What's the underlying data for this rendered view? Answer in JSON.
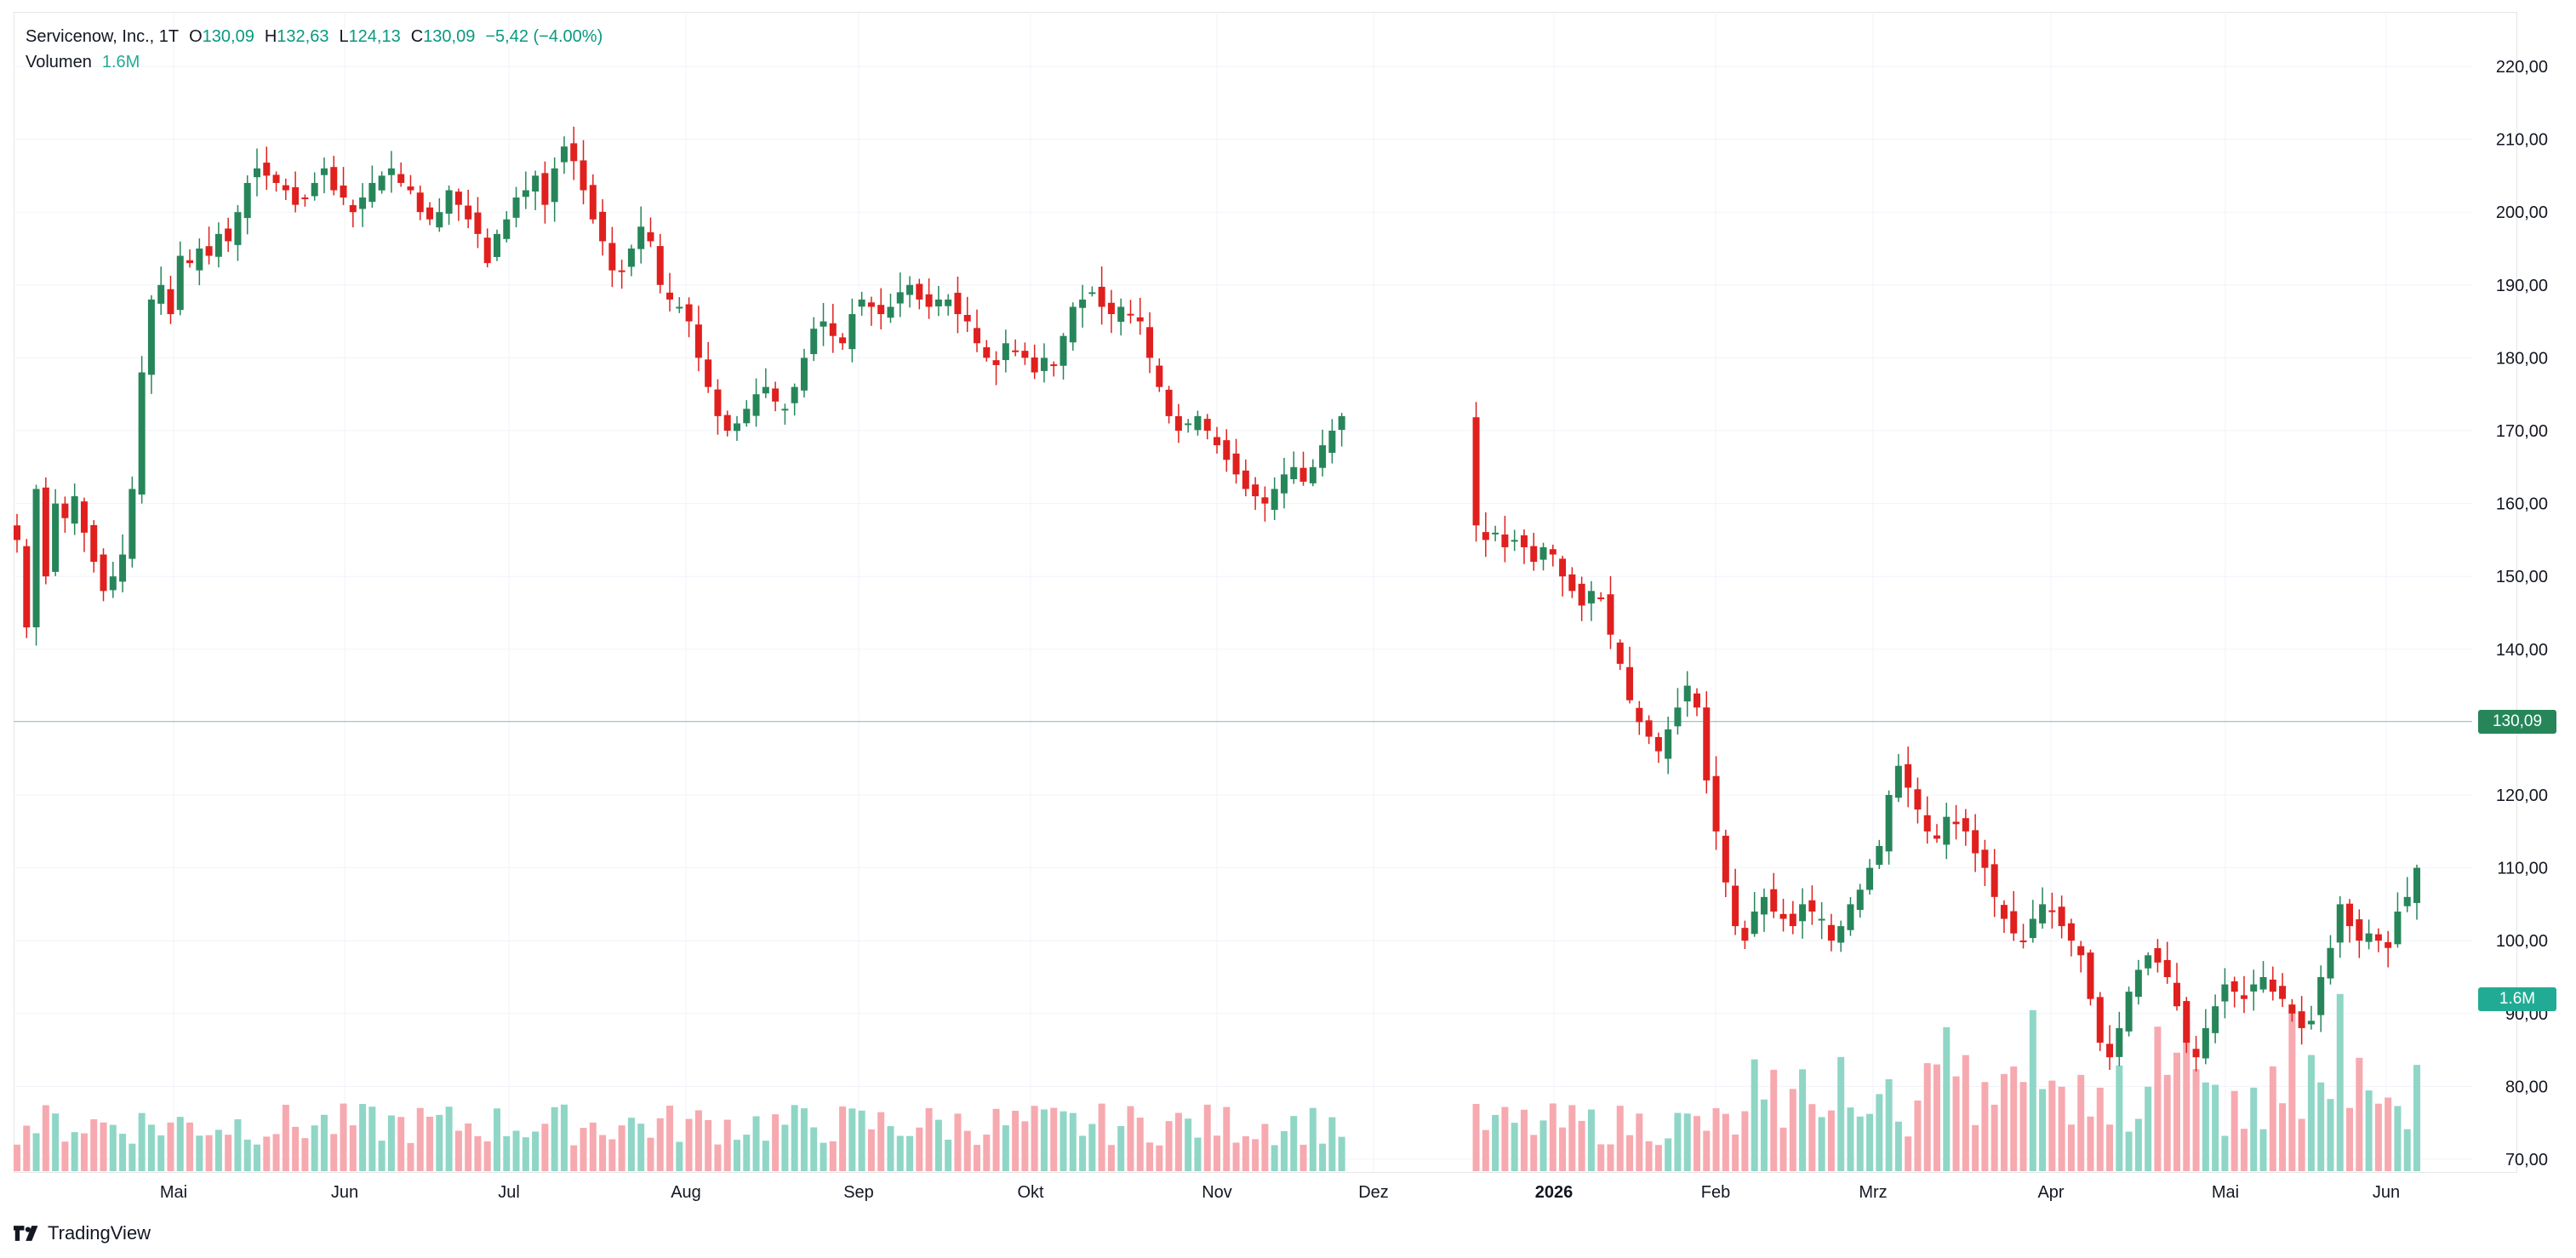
{
  "legend": {
    "symbol": "Servicenow, Inc., 1T",
    "open_key": "O",
    "open": "130,09",
    "high_key": "H",
    "high": "132,63",
    "low_key": "L",
    "low": "124,13",
    "close_key": "C",
    "close": "130,09",
    "change": "−5,42 (−4.00%)",
    "volume_label": "Volumen",
    "volume_value": "1.6M"
  },
  "badges": {
    "price": "130,09",
    "volume": "1.6M"
  },
  "logo": {
    "text": "TradingView"
  },
  "colors": {
    "up": "#26865a",
    "down": "#e0201e",
    "up_vol": "#8fd6c6",
    "down_vol": "#f7a9b0",
    "price_line": "#2b8a6b",
    "grid": "#f0f3fa"
  },
  "chart_data": {
    "type": "candlestick",
    "title": "Servicenow, Inc., 1T",
    "xlabel": "",
    "ylabel": "",
    "ylim": [
      68,
      224
    ],
    "y_ticks": [
      "70,00",
      "80,00",
      "90,00",
      "100,00",
      "110,00",
      "120,00",
      "130,00",
      "140,00",
      "150,00",
      "160,00",
      "170,00",
      "180,00",
      "190,00",
      "200,00",
      "210,00",
      "220,00"
    ],
    "x_ticks": [
      "Mai",
      "Jun",
      "Jul",
      "Aug",
      "Sep",
      "Okt",
      "Nov",
      "Dez",
      "2026",
      "Feb",
      "Mrz",
      "Apr",
      "Mai",
      "Jun"
    ],
    "last_price": 130.09,
    "grid": true,
    "segments": [
      {
        "from": 0,
        "to": 11,
        "values": [
          155,
          143,
          162,
          150,
          160,
          158,
          161,
          156,
          152,
          148,
          150,
          153
        ]
      },
      {
        "from": 12,
        "to": 38,
        "values": [
          162,
          178,
          188,
          190,
          186,
          194,
          193,
          195,
          194,
          197,
          196,
          200,
          204,
          206,
          205,
          204,
          203,
          201,
          202,
          204,
          206,
          203,
          202,
          200,
          202,
          204,
          205
        ]
      },
      {
        "from": 39,
        "to": 62,
        "values": [
          206,
          204,
          203,
          200,
          199,
          200,
          203,
          201,
          199,
          197,
          193,
          197,
          199,
          202,
          203,
          205,
          201,
          206,
          209,
          207,
          203,
          199,
          196,
          192
        ]
      },
      {
        "from": 63,
        "to": 96,
        "values": [
          192,
          195,
          198,
          196,
          190,
          188,
          187,
          185,
          180,
          176,
          172,
          170,
          171,
          173,
          175,
          176,
          174,
          173,
          176,
          180,
          184,
          185,
          183,
          182,
          186,
          188,
          187,
          186,
          187,
          189,
          190,
          188,
          187,
          188
        ]
      },
      {
        "from": 97,
        "to": 138,
        "values": [
          188,
          186,
          185,
          182,
          180,
          179,
          182,
          181,
          180,
          178,
          180,
          179,
          183,
          187,
          188,
          189,
          187,
          186,
          187,
          186,
          185,
          180,
          176,
          172,
          170,
          171,
          172,
          170,
          168,
          166,
          164,
          162,
          161,
          160,
          162,
          164,
          165,
          163,
          165,
          168,
          170,
          172
        ]
      },
      {
        "from": 152,
        "to": 194,
        "values": [
          157,
          155,
          156,
          154,
          155,
          154,
          152,
          154,
          153,
          150,
          148,
          146,
          148,
          147,
          142,
          138,
          133,
          130,
          128,
          126,
          129,
          132,
          135,
          132,
          122,
          115,
          108,
          102,
          100,
          104,
          106,
          104,
          103,
          102,
          105,
          104,
          103,
          100,
          102,
          105,
          107,
          110,
          113
        ]
      },
      {
        "from": 195,
        "to": 244,
        "values": [
          120,
          124,
          121,
          118,
          115,
          114,
          117,
          116,
          115,
          112,
          110,
          106,
          103,
          101,
          100,
          103,
          105,
          104,
          102,
          100,
          98,
          92,
          86,
          84,
          88,
          93,
          96,
          98,
          97,
          95,
          91,
          86,
          84,
          88,
          91,
          94,
          93,
          92,
          94,
          95,
          93,
          92,
          90,
          88,
          89,
          95,
          99,
          105,
          102,
          100
        ]
      },
      {
        "from": 245,
        "to": 250,
        "values": [
          101,
          100,
          99,
          104,
          106,
          110
        ]
      }
    ],
    "final_candles": [
      {
        "o": 117,
        "h": 126,
        "l": 116,
        "c": 125
      },
      {
        "o": 135.5,
        "h": 139,
        "l": 132,
        "c": 135.5
      },
      {
        "o": 130.09,
        "h": 132.63,
        "l": 124.13,
        "c": 130.09
      }
    ]
  }
}
